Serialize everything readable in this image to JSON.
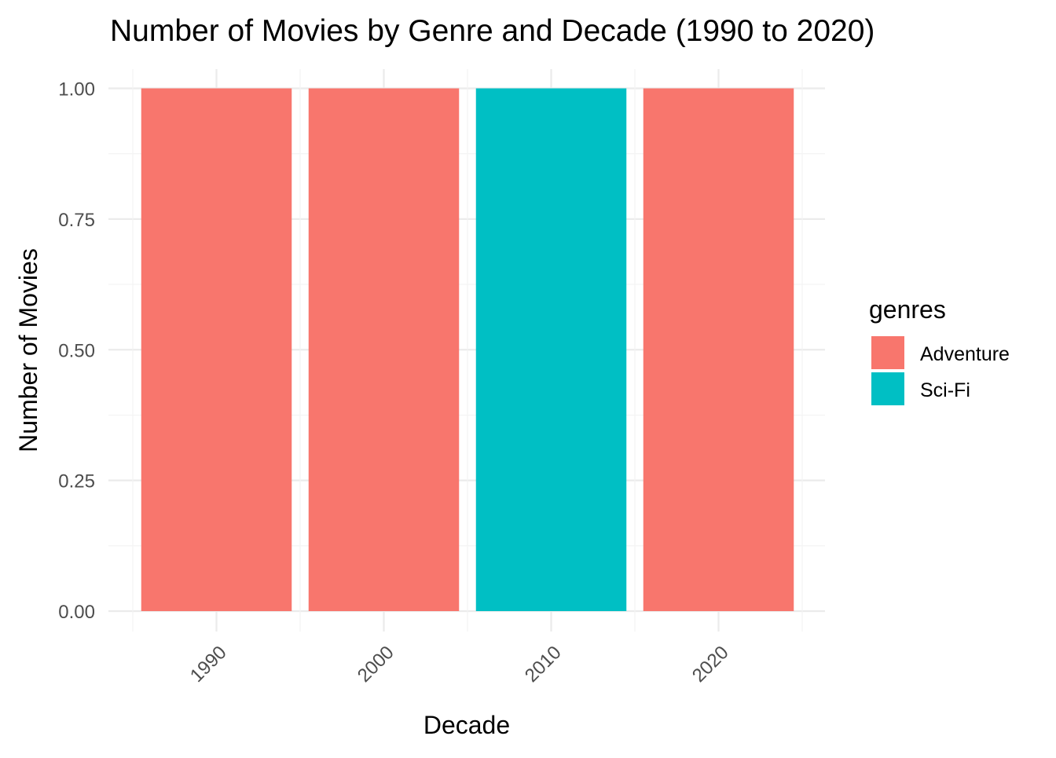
{
  "chart_data": {
    "type": "bar",
    "title": "Number of Movies by Genre and Decade (1990 to 2020)",
    "xlabel": "Decade",
    "ylabel": "Number of Movies",
    "categories": [
      "1990",
      "2000",
      "2010",
      "2020"
    ],
    "series": [
      {
        "name": "Adventure",
        "color": "#F8766D",
        "values": [
          1,
          1,
          0,
          1
        ]
      },
      {
        "name": "Sci-Fi",
        "color": "#00BFC4",
        "values": [
          0,
          0,
          1,
          0
        ]
      }
    ],
    "ylim": [
      0,
      1
    ],
    "yticks": [
      "0.00",
      "0.25",
      "0.50",
      "0.75",
      "1.00"
    ],
    "grid": true,
    "legend": {
      "title": "genres",
      "position": "right"
    },
    "x_tick_rotation": -45
  }
}
